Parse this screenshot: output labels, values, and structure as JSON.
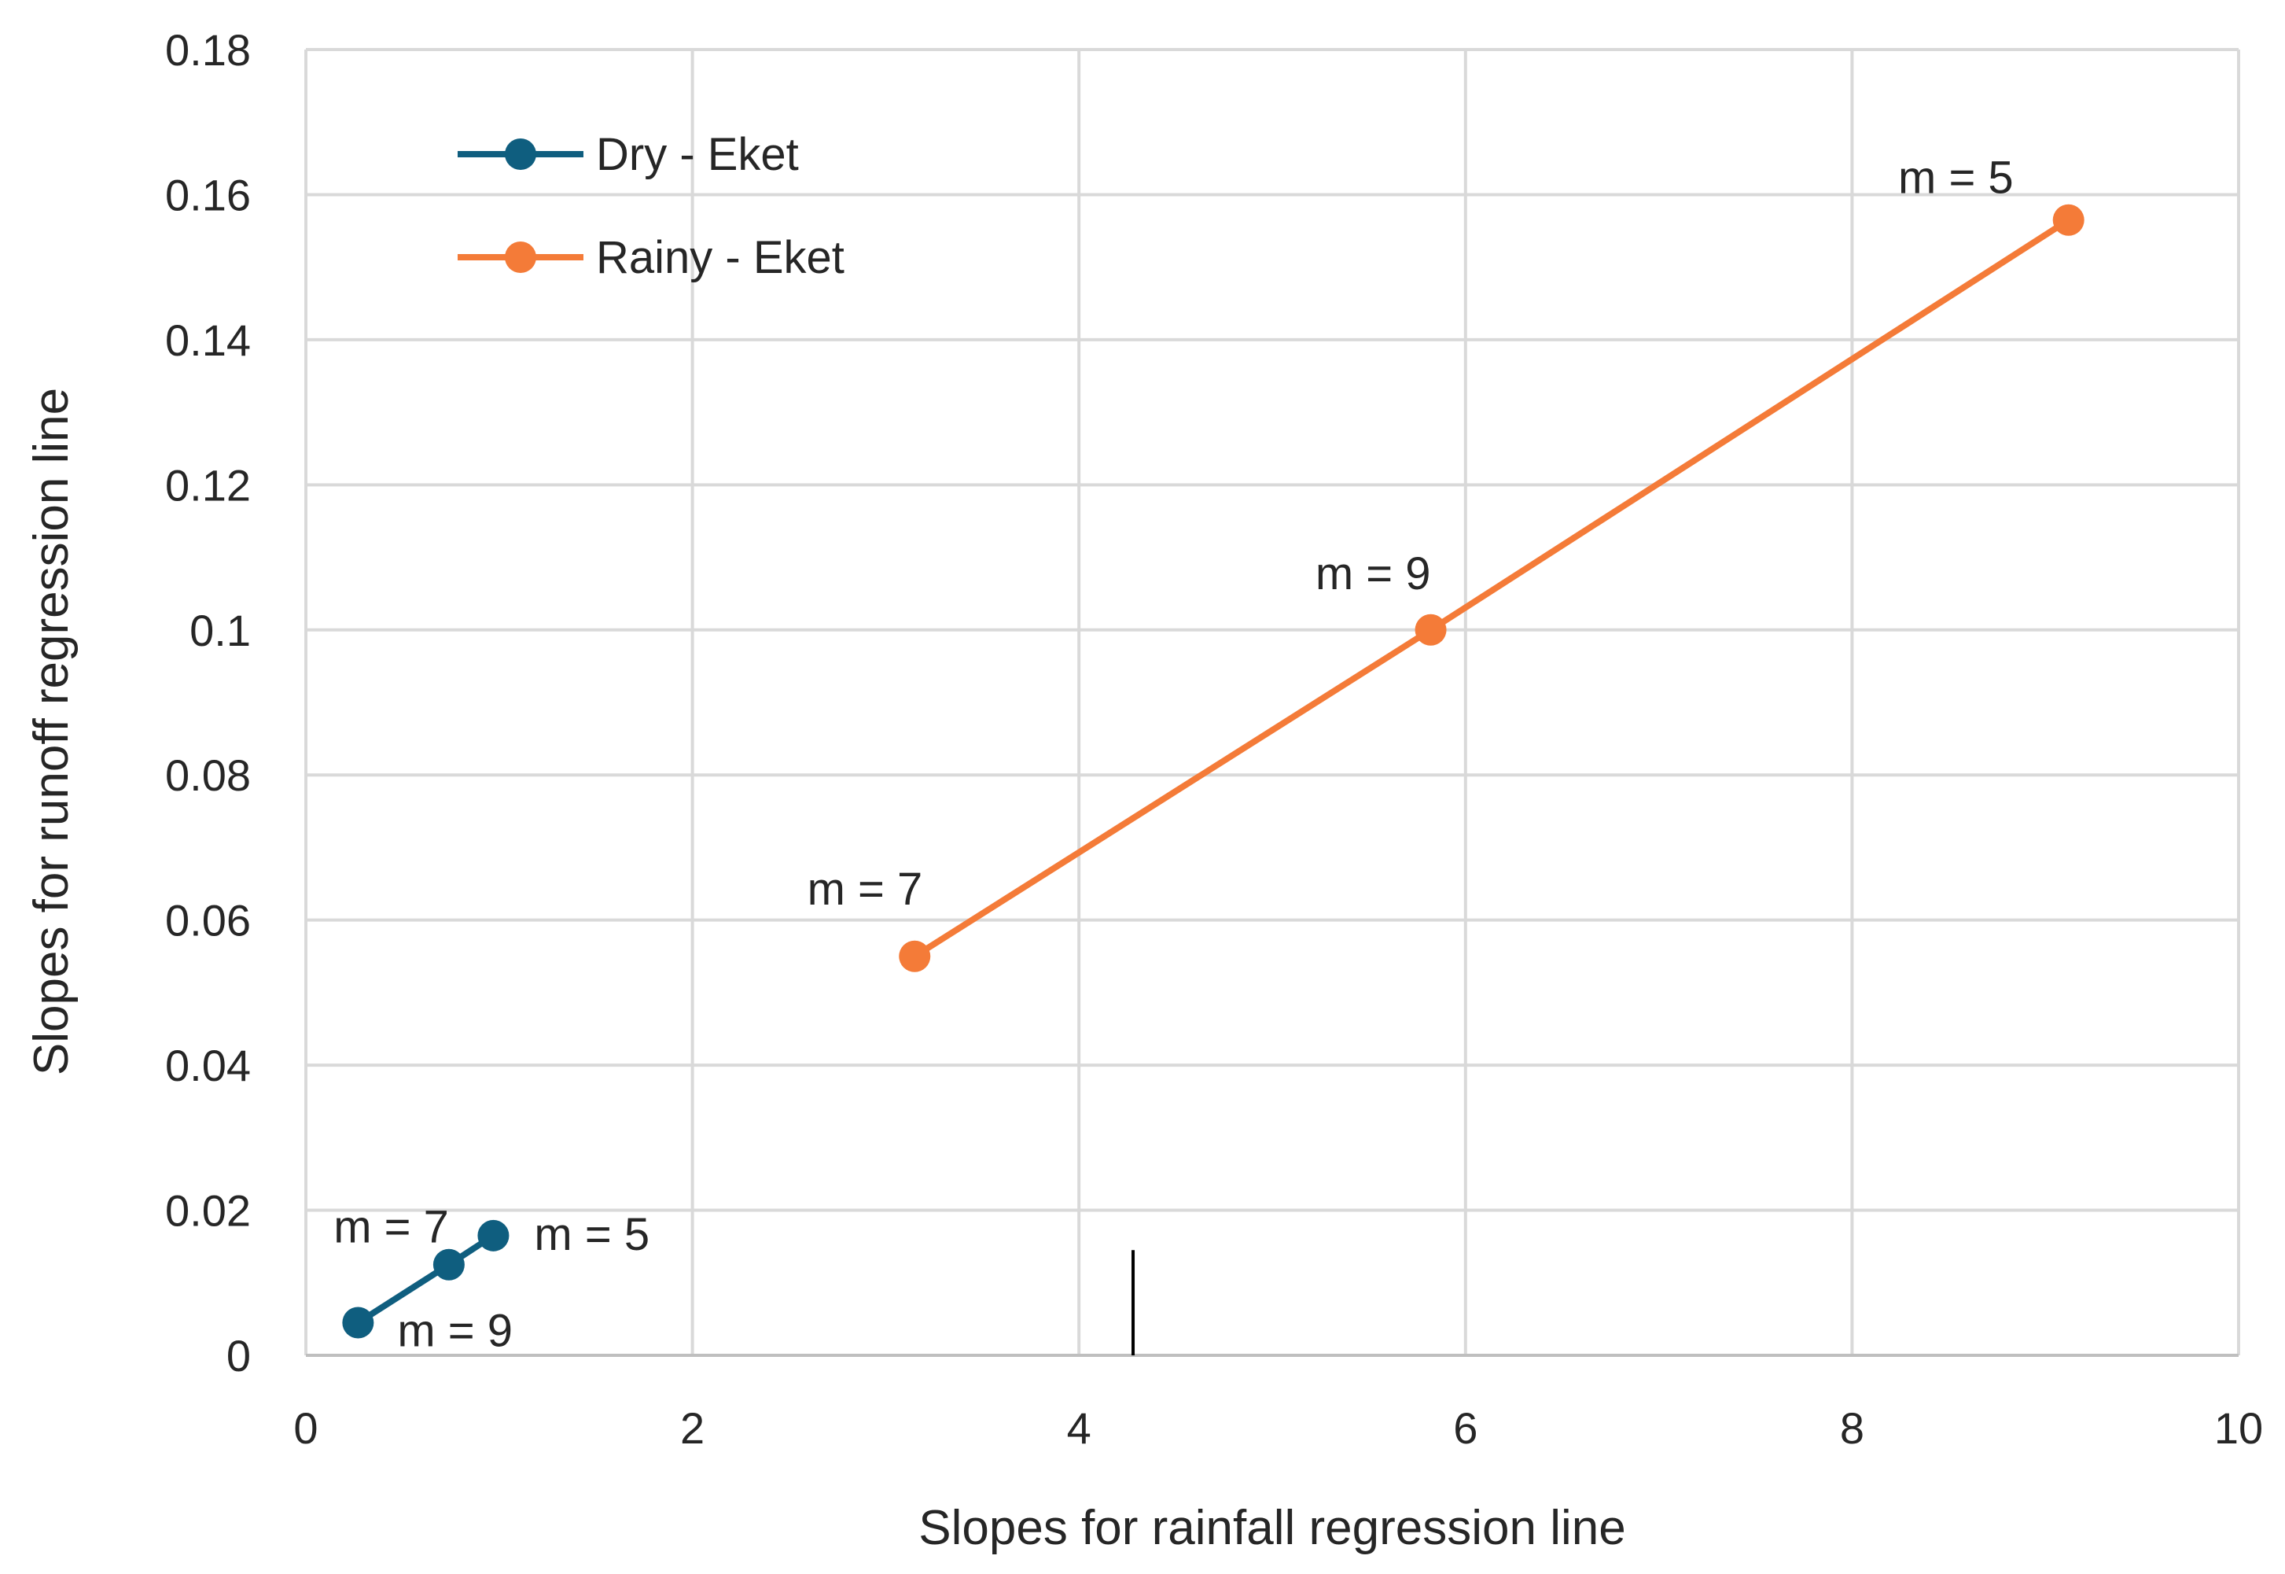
{
  "chart_data": {
    "type": "line",
    "title": "",
    "xlabel": "Slopes for rainfall regression line",
    "ylabel": "Slopes for runoff  regression line",
    "xlim": [
      0,
      10
    ],
    "ylim": [
      0,
      0.18
    ],
    "x_ticks": [
      "0",
      "2",
      "4",
      "6",
      "8",
      "10"
    ],
    "y_ticks": [
      "0",
      "0.02",
      "0.04",
      "0.06",
      "0.08",
      "0.1",
      "0.12",
      "0.14",
      "0.16",
      "0.18"
    ],
    "grid": true,
    "legend_position": "top-left",
    "series": [
      {
        "name": "Dry - Eket",
        "color": "#0f5e7f",
        "points": [
          {
            "x": 0.27,
            "y": 0.0045,
            "label": "m = 9"
          },
          {
            "x": 0.74,
            "y": 0.0125,
            "label": "m = 7"
          },
          {
            "x": 0.97,
            "y": 0.0165,
            "label": "m = 5"
          }
        ]
      },
      {
        "name": "Rainy - Eket",
        "color": "#f47b38",
        "points": [
          {
            "x": 3.15,
            "y": 0.055,
            "label": "m = 7"
          },
          {
            "x": 5.82,
            "y": 0.1,
            "label": "m = 9"
          },
          {
            "x": 9.12,
            "y": 0.1565,
            "label": "m = 5"
          }
        ]
      }
    ],
    "annotations": [
      {
        "type": "vertical-mark",
        "x": 4.28,
        "y_from": 0.0,
        "y_to": 0.0145
      }
    ]
  }
}
